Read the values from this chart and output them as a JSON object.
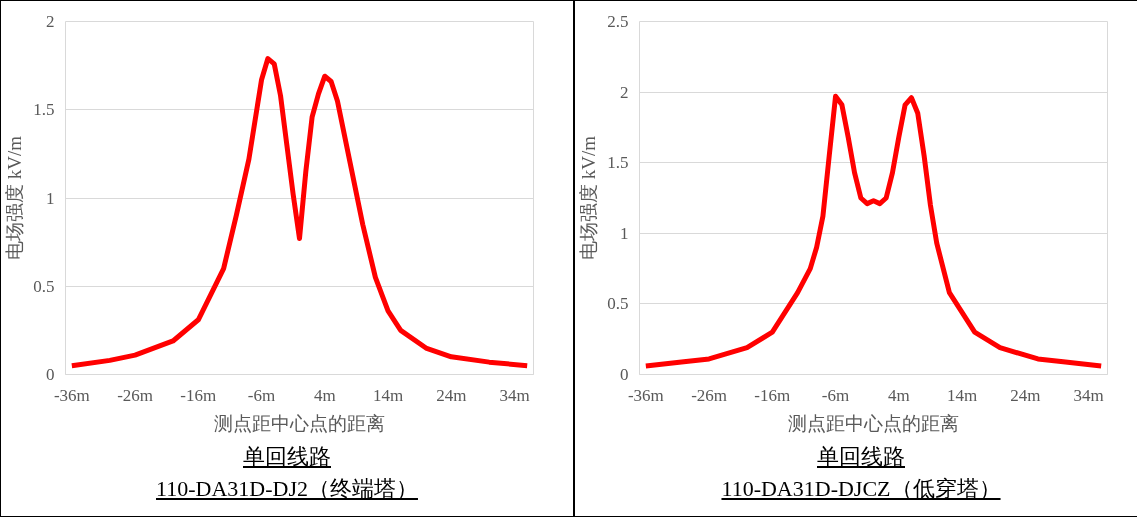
{
  "chart_data": [
    {
      "type": "line",
      "xlabel": "测点距中心点的距离",
      "ylabel": "电场强度 kV/m",
      "annotations": [
        "单回线路",
        "110-DA31D-DJ2（终端塔）"
      ],
      "xlim": [
        -37,
        37
      ],
      "xticks": [
        {
          "value": -36,
          "label": "-36m"
        },
        {
          "value": -26,
          "label": "-26m"
        },
        {
          "value": -16,
          "label": "-16m"
        },
        {
          "value": -6,
          "label": "-6m"
        },
        {
          "value": 4,
          "label": "4m"
        },
        {
          "value": 14,
          "label": "14m"
        },
        {
          "value": 24,
          "label": "24m"
        },
        {
          "value": 34,
          "label": "34m"
        }
      ],
      "ylim": [
        0,
        2
      ],
      "yticks": [
        0,
        0.5,
        1,
        1.5,
        2
      ],
      "grid": "y",
      "series": [
        {
          "color": "#ff0000",
          "x": [
            -36,
            -30,
            -26,
            -20,
            -16,
            -12,
            -10,
            -8,
            -6,
            -5,
            -4,
            -3,
            -2,
            -1,
            0,
            1,
            2,
            3,
            4,
            5,
            6,
            8,
            10,
            12,
            14,
            16,
            20,
            24,
            30,
            36
          ],
          "values": [
            0.05,
            0.08,
            0.11,
            0.19,
            0.31,
            0.6,
            0.9,
            1.22,
            1.67,
            1.79,
            1.76,
            1.58,
            1.3,
            1.02,
            0.77,
            1.15,
            1.46,
            1.59,
            1.69,
            1.66,
            1.55,
            1.2,
            0.85,
            0.55,
            0.36,
            0.25,
            0.15,
            0.1,
            0.07,
            0.05
          ]
        }
      ]
    },
    {
      "type": "line",
      "xlabel": "测点距中心点的距离",
      "ylabel": "电场强度 kV/m",
      "annotations": [
        "单回线路",
        "110-DA31D-DJCZ（低穿塔）"
      ],
      "xlim": [
        -37,
        37
      ],
      "xticks": [
        {
          "value": -36,
          "label": "-36m"
        },
        {
          "value": -26,
          "label": "-26m"
        },
        {
          "value": -16,
          "label": "-16m"
        },
        {
          "value": -6,
          "label": "-6m"
        },
        {
          "value": 4,
          "label": "4m"
        },
        {
          "value": 14,
          "label": "14m"
        },
        {
          "value": 24,
          "label": "24m"
        },
        {
          "value": 34,
          "label": "34m"
        }
      ],
      "ylim": [
        0,
        2.5
      ],
      "yticks": [
        0,
        0.5,
        1,
        1.5,
        2,
        2.5
      ],
      "grid": "y",
      "series": [
        {
          "color": "#ff0000",
          "x": [
            -36,
            -30,
            -26,
            -20,
            -16,
            -12,
            -10,
            -9,
            -8,
            -7,
            -6,
            -5,
            -4,
            -3,
            -2,
            -1,
            0,
            1,
            2,
            3,
            4,
            5,
            6,
            7,
            8,
            9,
            10,
            12,
            16,
            20,
            26,
            30,
            36
          ],
          "values": [
            0.06,
            0.09,
            0.11,
            0.19,
            0.3,
            0.58,
            0.75,
            0.9,
            1.12,
            1.55,
            1.97,
            1.91,
            1.68,
            1.43,
            1.25,
            1.21,
            1.23,
            1.21,
            1.25,
            1.43,
            1.68,
            1.91,
            1.96,
            1.85,
            1.55,
            1.2,
            0.93,
            0.58,
            0.3,
            0.19,
            0.11,
            0.09,
            0.06
          ]
        }
      ]
    }
  ]
}
